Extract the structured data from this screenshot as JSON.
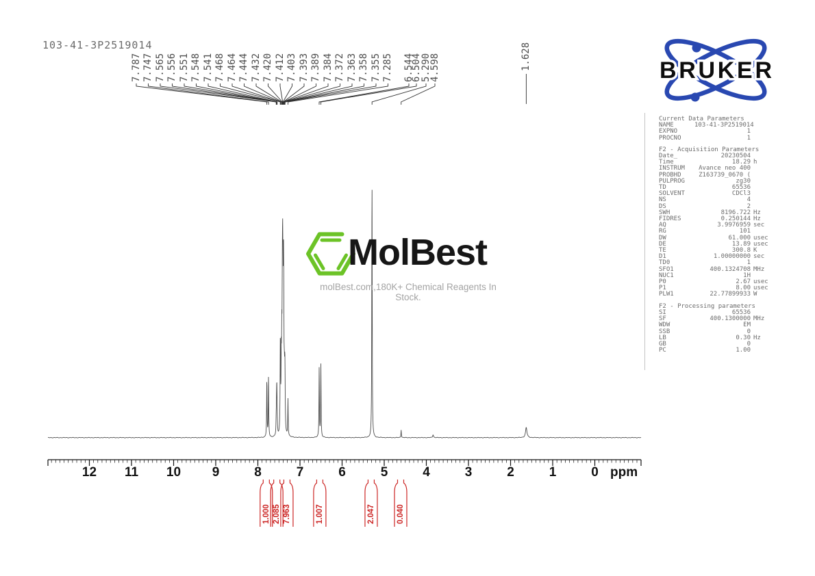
{
  "sample_name": "103-41-3P2519014",
  "branding": {
    "bruker_text": "BRUKER",
    "bruker_blue": "#2948b1",
    "molbest_text": "MolBest",
    "molbest_green": "#6cc327",
    "tagline": "molBest.com,180K+ Chemical Reagents In Stock."
  },
  "colors": {
    "trace": "#4a4a4a",
    "integral_red": "#cc2524",
    "peak_label_gray": "#4d4d4d",
    "param_gray": "#6b6b6b"
  },
  "peak_labels": [
    "7.787",
    "7.747",
    "7.565",
    "7.556",
    "7.551",
    "7.548",
    "7.541",
    "7.468",
    "7.464",
    "7.444",
    "7.432",
    "7.420",
    "7.412",
    "7.403",
    "7.393",
    "7.389",
    "7.384",
    "7.372",
    "7.363",
    "7.358",
    "7.355",
    "7.285",
    "6.544",
    "6.504",
    "5.290",
    "4.598"
  ],
  "reference_peak_label": "1.628",
  "axis": {
    "unit": "ppm",
    "major_ticks": [
      12,
      11,
      10,
      9,
      8,
      7,
      6,
      5,
      4,
      3,
      2,
      1,
      0
    ],
    "minor_step": 0.1,
    "range_ppm": [
      13.0,
      -1.1
    ]
  },
  "integrals": [
    {
      "value": "1.000",
      "center_ppm": 7.8
    },
    {
      "value": "2.085",
      "center_ppm": 7.55
    },
    {
      "value": "7.963",
      "center_ppm": 7.31
    },
    {
      "value": "1.007",
      "center_ppm": 6.53
    },
    {
      "value": "2.047",
      "center_ppm": 5.31
    },
    {
      "value": "0.040",
      "center_ppm": 4.61
    }
  ],
  "chart_data": {
    "type": "line",
    "xlabel": "ppm",
    "x_axis": {
      "range": [
        13.0,
        -1.1
      ],
      "reversed": true,
      "major_ticks": [
        12,
        11,
        10,
        9,
        8,
        7,
        6,
        5,
        4,
        3,
        2,
        1,
        0
      ]
    },
    "labeled_shifts_ppm": [
      7.787,
      7.747,
      7.565,
      7.556,
      7.551,
      7.548,
      7.541,
      7.468,
      7.464,
      7.444,
      7.432,
      7.42,
      7.412,
      7.403,
      7.393,
      7.389,
      7.384,
      7.372,
      7.363,
      7.358,
      7.355,
      7.285,
      6.544,
      6.504,
      5.29,
      4.598,
      1.628
    ],
    "integral_values": [
      1.0,
      2.085,
      7.963,
      1.007,
      2.047,
      0.04
    ],
    "peaks": [
      {
        "ppm": 7.787,
        "rel_height": 0.24,
        "hw": 0.006
      },
      {
        "ppm": 7.747,
        "rel_height": 0.25,
        "hw": 0.006
      },
      {
        "ppm": 7.565,
        "rel_height": 0.05,
        "hw": 0.006
      },
      {
        "ppm": 7.556,
        "rel_height": 0.08,
        "hw": 0.006
      },
      {
        "ppm": 7.551,
        "rel_height": 0.09,
        "hw": 0.006
      },
      {
        "ppm": 7.548,
        "rel_height": 0.08,
        "hw": 0.006
      },
      {
        "ppm": 7.541,
        "rel_height": 0.06,
        "hw": 0.006
      },
      {
        "ppm": 7.468,
        "rel_height": 0.2,
        "hw": 0.006
      },
      {
        "ppm": 7.464,
        "rel_height": 0.22,
        "hw": 0.006
      },
      {
        "ppm": 7.444,
        "rel_height": 0.26,
        "hw": 0.006
      },
      {
        "ppm": 7.432,
        "rel_height": 0.3,
        "hw": 0.006
      },
      {
        "ppm": 7.42,
        "rel_height": 0.4,
        "hw": 0.006
      },
      {
        "ppm": 7.412,
        "rel_height": 0.55,
        "hw": 0.006
      },
      {
        "ppm": 7.403,
        "rel_height": 0.42,
        "hw": 0.006
      },
      {
        "ppm": 7.393,
        "rel_height": 0.32,
        "hw": 0.006
      },
      {
        "ppm": 7.389,
        "rel_height": 0.28,
        "hw": 0.006
      },
      {
        "ppm": 7.384,
        "rel_height": 0.24,
        "hw": 0.006
      },
      {
        "ppm": 7.372,
        "rel_height": 0.16,
        "hw": 0.006
      },
      {
        "ppm": 7.363,
        "rel_height": 0.13,
        "hw": 0.006
      },
      {
        "ppm": 7.358,
        "rel_height": 0.11,
        "hw": 0.006
      },
      {
        "ppm": 7.355,
        "rel_height": 0.1,
        "hw": 0.006
      },
      {
        "ppm": 7.285,
        "rel_height": 0.155,
        "hw": 0.006
      },
      {
        "ppm": 6.544,
        "rel_height": 0.29,
        "hw": 0.006
      },
      {
        "ppm": 6.504,
        "rel_height": 0.3,
        "hw": 0.006
      },
      {
        "ppm": 5.29,
        "rel_height": 1.08,
        "hw": 0.006
      },
      {
        "ppm": 4.598,
        "rel_height": 0.033,
        "hw": 0.006
      },
      {
        "ppm": 3.84,
        "rel_height": 0.012,
        "hw": 0.012
      },
      {
        "ppm": 1.628,
        "rel_height": 0.042,
        "hw": 0.02
      }
    ]
  },
  "parameters_panel": {
    "sections": [
      {
        "title": "Current Data Parameters",
        "rows": [
          [
            "NAME",
            "103-41-3P2519014",
            ""
          ],
          [
            "EXPNO",
            "1",
            ""
          ],
          [
            "PROCNO",
            "1",
            ""
          ]
        ]
      },
      {
        "title": "F2 - Acquisition Parameters",
        "rows": [
          [
            "Date_",
            "20230504",
            ""
          ],
          [
            "Time",
            "18.29",
            "h"
          ],
          [
            "INSTRUM",
            "Avance neo 400",
            ""
          ],
          [
            "PROBHD",
            "Z163739_0670 (",
            ""
          ],
          [
            "PULPROG",
            "zg30",
            ""
          ],
          [
            "TD",
            "65536",
            ""
          ],
          [
            "SOLVENT",
            "CDCl3",
            ""
          ],
          [
            "NS",
            "4",
            ""
          ],
          [
            "DS",
            "2",
            ""
          ],
          [
            "SWH",
            "8196.722",
            "Hz"
          ],
          [
            "FIDRES",
            "0.250144",
            "Hz"
          ],
          [
            "AQ",
            "3.9976959",
            "sec"
          ],
          [
            "RG",
            "101",
            ""
          ],
          [
            "DW",
            "61.000",
            "usec"
          ],
          [
            "DE",
            "13.89",
            "usec"
          ],
          [
            "TE",
            "300.8",
            "K"
          ],
          [
            "D1",
            "1.00000000",
            "sec"
          ],
          [
            "TD0",
            "1",
            ""
          ],
          [
            "SFO1",
            "400.1324708",
            "MHz"
          ],
          [
            "NUC1",
            "1H",
            ""
          ],
          [
            "P0",
            "2.67",
            "usec"
          ],
          [
            "P1",
            "8.00",
            "usec"
          ],
          [
            "PLW1",
            "22.77899933",
            "W"
          ]
        ]
      },
      {
        "title": "F2 - Processing parameters",
        "rows": [
          [
            "SI",
            "65536",
            ""
          ],
          [
            "SF",
            "400.1300000",
            "MHz"
          ],
          [
            "WDW",
            "EM",
            ""
          ],
          [
            "SSB",
            "0",
            ""
          ],
          [
            "LB",
            "0.30",
            "Hz"
          ],
          [
            "GB",
            "0",
            ""
          ],
          [
            "PC",
            "1.00",
            ""
          ]
        ]
      }
    ]
  }
}
